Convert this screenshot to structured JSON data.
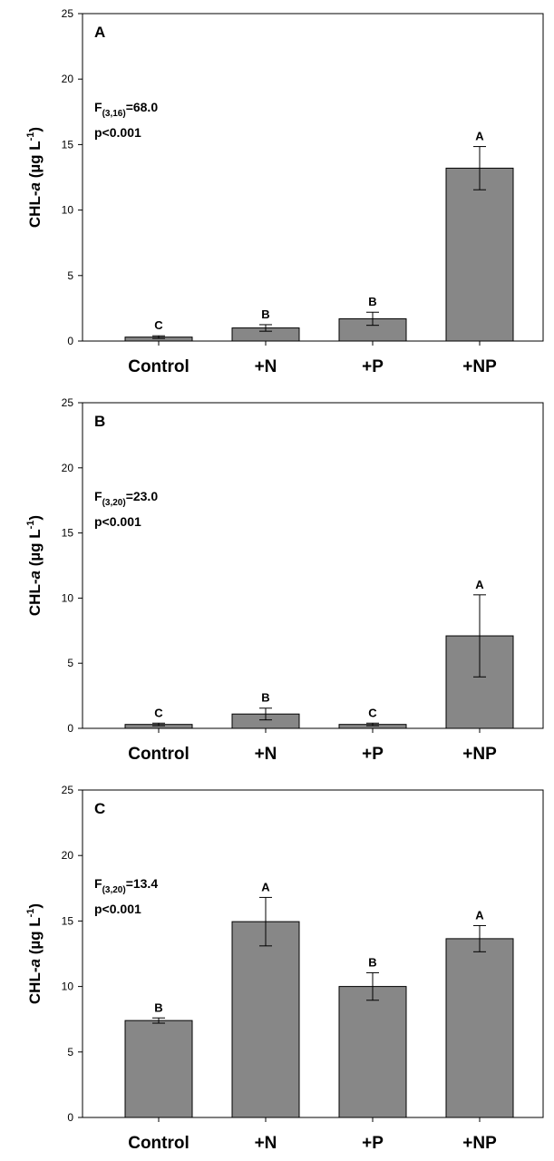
{
  "chart_data": [
    {
      "type": "bar",
      "panel_label": "A",
      "categories": [
        "Control",
        "+N",
        "+P",
        "+NP"
      ],
      "values": [
        0.3,
        1.0,
        1.7,
        13.2
      ],
      "errors": [
        0.1,
        0.25,
        0.5,
        1.65
      ],
      "significance": [
        "C",
        "B",
        "B",
        "A"
      ],
      "stat_f_prefix": "F",
      "stat_f_sub": "(3,16)",
      "stat_f_value": "=68.0",
      "stat_p": "p<0.001",
      "ylabel_prefix": "CHL-",
      "ylabel_italic": "a",
      "ylabel_unit": " (µg L",
      "ylabel_sup": "-1",
      "ylabel_close": ")",
      "ylim": [
        0,
        25
      ],
      "yticks": [
        "0",
        "5",
        "10",
        "15",
        "20",
        "25"
      ],
      "bar_color": "#878787"
    },
    {
      "type": "bar",
      "panel_label": "B",
      "categories": [
        "Control",
        "+N",
        "+P",
        "+NP"
      ],
      "values": [
        0.3,
        1.1,
        0.3,
        7.1
      ],
      "errors": [
        0.1,
        0.45,
        0.1,
        3.15
      ],
      "significance": [
        "C",
        "B",
        "C",
        "A"
      ],
      "stat_f_prefix": "F",
      "stat_f_sub": "(3,20)",
      "stat_f_value": "=23.0",
      "stat_p": "p<0.001",
      "ylabel_prefix": "CHL-",
      "ylabel_italic": "a",
      "ylabel_unit": " (µg L",
      "ylabel_sup": "-1",
      "ylabel_close": ")",
      "ylim": [
        0,
        25
      ],
      "yticks": [
        "0",
        "5",
        "10",
        "15",
        "20",
        "25"
      ],
      "bar_color": "#878787"
    },
    {
      "type": "bar",
      "panel_label": "C",
      "categories": [
        "Control",
        "+N",
        "+P",
        "+NP"
      ],
      "values": [
        7.4,
        14.95,
        10.0,
        13.65
      ],
      "errors": [
        0.2,
        1.85,
        1.05,
        1.0
      ],
      "significance": [
        "B",
        "A",
        "B",
        "A"
      ],
      "stat_f_prefix": "F",
      "stat_f_sub": "(3,20)",
      "stat_f_value": "=13.4",
      "stat_p": "p<0.001",
      "ylabel_prefix": "CHL-",
      "ylabel_italic": "a",
      "ylabel_unit": " (µg L",
      "ylabel_sup": "-1",
      "ylabel_close": ")",
      "ylim": [
        0,
        25
      ],
      "yticks": [
        "0",
        "5",
        "10",
        "15",
        "20",
        "25"
      ],
      "bar_color": "#878787"
    }
  ]
}
